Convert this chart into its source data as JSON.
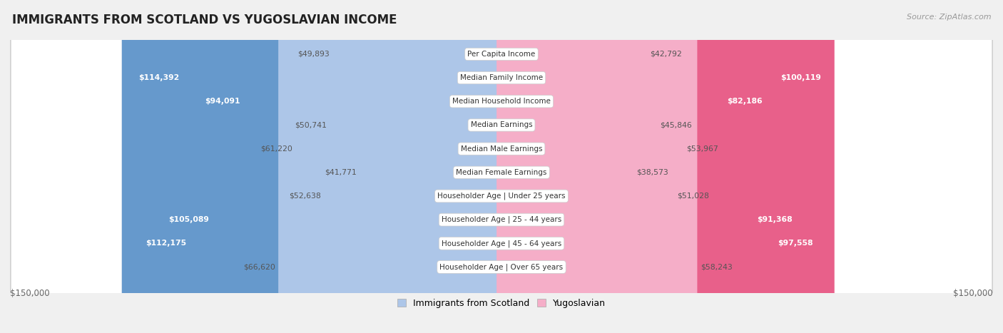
{
  "title": "IMMIGRANTS FROM SCOTLAND VS YUGOSLAVIAN INCOME",
  "source": "Source: ZipAtlas.com",
  "categories": [
    "Per Capita Income",
    "Median Family Income",
    "Median Household Income",
    "Median Earnings",
    "Median Male Earnings",
    "Median Female Earnings",
    "Householder Age | Under 25 years",
    "Householder Age | 25 - 44 years",
    "Householder Age | 45 - 64 years",
    "Householder Age | Over 65 years"
  ],
  "scotland_values": [
    49893,
    114392,
    94091,
    50741,
    61220,
    41771,
    52638,
    105089,
    112175,
    66620
  ],
  "yugoslavian_values": [
    42792,
    100119,
    82186,
    45846,
    53967,
    38573,
    51028,
    91368,
    97558,
    58243
  ],
  "scotland_color_light": "#adc6e8",
  "scotland_color_dark": "#6699cc",
  "yugoslavian_color_light": "#f5aec8",
  "yugoslavian_color_dark": "#e8608a",
  "bg_color": "#f0f0f0",
  "row_bg": "#ffffff",
  "max_value": 150000,
  "threshold_inside": 80000,
  "legend_scotland": "Immigrants from Scotland",
  "legend_yugoslavian": "Yugoslavian",
  "xlabel_left": "$150,000",
  "xlabel_right": "$150,000"
}
